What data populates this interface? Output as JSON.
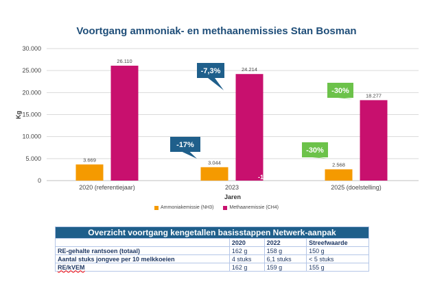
{
  "chart_data": {
    "type": "bar",
    "title": "Voortgang ammoniak- en methaanemissies Stan Bosman",
    "xlabel": "Jaren",
    "ylabel": "Kg",
    "ylim": [
      0,
      30000
    ],
    "yticks": [
      "0",
      "5.000",
      "10.000",
      "15.000",
      "20.000",
      "25.000",
      "30.000"
    ],
    "grid": true,
    "legend_position": "bottom",
    "categories": [
      "2020 (referentiejaar)",
      "2023",
      "2025 (doelstelling)"
    ],
    "series": [
      {
        "name": "Ammoniakemissie (NH3)",
        "color": "#f59a00",
        "values": [
          3669,
          3044,
          2568
        ],
        "labels": [
          "3.669",
          "3.044",
          "2.568"
        ]
      },
      {
        "name": "Methaanemissie (CH4)",
        "color": "#c8106e",
        "values": [
          26110,
          24214,
          18277
        ],
        "labels": [
          "26.110",
          "24.214",
          "18.277"
        ]
      }
    ],
    "annotations": [
      {
        "text": "-17%",
        "color": "#1f5f8b",
        "target": "Ammoniakemissie (NH3) 2023"
      },
      {
        "text": "-7,3%",
        "color": "#1f5f8b",
        "target": "Methaanemissie (CH4) 2023"
      },
      {
        "text": "-30%",
        "color": "#6cc24a",
        "target": "Ammoniakemissie (NH3) 2025"
      },
      {
        "text": "-30%",
        "color": "#6cc24a",
        "target": "Methaanemissie (CH4) 2025"
      },
      {
        "text": "-1",
        "color": "#ffffff",
        "target": "Methaanemissie (CH4) 2023 truncated"
      }
    ]
  },
  "table": {
    "title": "Overzicht voortgang kengetallen basisstappen Netwerk-aanpak",
    "columns": [
      "",
      "2020",
      "2022",
      "Streefwaarde"
    ],
    "rows": [
      [
        "RE-gehalte rantsoen (totaal)",
        "162 g",
        "158 g",
        "150 g"
      ],
      [
        "Aantal stuks jongvee per 10 melkkoeien",
        "4 stuks",
        "6,1 stuks",
        "< 5 stuks"
      ],
      [
        "RE/kVEM",
        "162 g",
        "159 g",
        "155 g"
      ]
    ]
  }
}
